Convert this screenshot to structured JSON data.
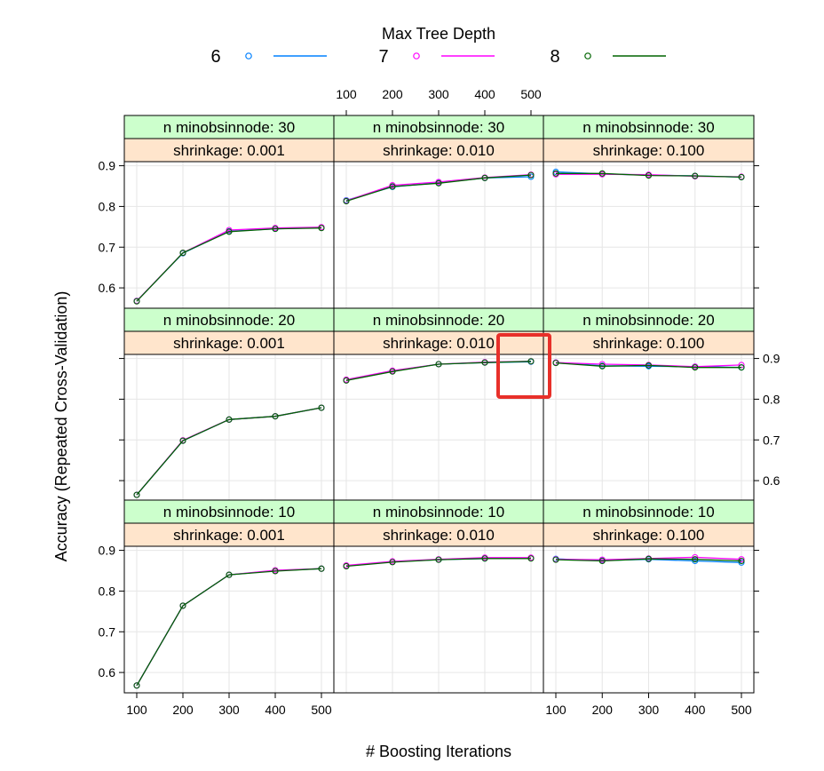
{
  "chart_data": {
    "type": "line",
    "title": "",
    "xlabel": "# Boosting Iterations",
    "ylabel": "Accuracy (Repeated Cross-Validation)",
    "legend": {
      "title": "Max Tree Depth",
      "placement": "top",
      "entries": [
        {
          "label": "6",
          "color": "#0080ff"
        },
        {
          "label": "7",
          "color": "#ff00ff"
        },
        {
          "label": "8",
          "color": "#006400"
        }
      ]
    },
    "x": [
      100,
      200,
      300,
      400,
      500
    ],
    "x_ticks": [
      "100",
      "200",
      "300",
      "400",
      "500"
    ],
    "ylim": [
      0.55,
      0.91
    ],
    "y_ticks": [
      "0.6",
      "0.7",
      "0.8",
      "0.9"
    ],
    "grid": true,
    "strip_colors": {
      "minobsinnode": "#ccffcc",
      "shrinkage": "#ffe5cc"
    },
    "highlight_box_color": "#e8302a",
    "panels": [
      {
        "row": 0,
        "col": 0,
        "minobsinnode_label": "n minobsinnode: 30",
        "shrinkage_label": "shrinkage: 0.001",
        "series": [
          {
            "name": "6",
            "values": [
              0.568,
              0.685,
              0.739,
              0.745,
              0.748
            ]
          },
          {
            "name": "7",
            "values": [
              0.568,
              0.686,
              0.742,
              0.747,
              0.749
            ]
          },
          {
            "name": "8",
            "values": [
              0.567,
              0.686,
              0.738,
              0.745,
              0.747
            ]
          }
        ]
      },
      {
        "row": 0,
        "col": 1,
        "minobsinnode_label": "n minobsinnode: 30",
        "shrinkage_label": "shrinkage: 0.010",
        "series": [
          {
            "name": "6",
            "values": [
              0.815,
              0.848,
              0.858,
              0.87,
              0.873
            ]
          },
          {
            "name": "7",
            "values": [
              0.814,
              0.852,
              0.86,
              0.871,
              0.878
            ]
          },
          {
            "name": "8",
            "values": [
              0.813,
              0.849,
              0.857,
              0.87,
              0.877
            ]
          }
        ]
      },
      {
        "row": 0,
        "col": 2,
        "minobsinnode_label": "n minobsinnode: 30",
        "shrinkage_label": "shrinkage: 0.100",
        "series": [
          {
            "name": "6",
            "values": [
              0.885,
              0.88,
              0.877,
              0.875,
              0.872
            ]
          },
          {
            "name": "7",
            "values": [
              0.879,
              0.879,
              0.878,
              0.874,
              0.873
            ]
          },
          {
            "name": "8",
            "values": [
              0.881,
              0.881,
              0.876,
              0.875,
              0.872
            ]
          }
        ]
      },
      {
        "row": 1,
        "col": 0,
        "minobsinnode_label": "n minobsinnode: 20",
        "shrinkage_label": "shrinkage: 0.001",
        "series": [
          {
            "name": "6",
            "values": [
              0.565,
              0.698,
              0.75,
              0.758,
              0.779
            ]
          },
          {
            "name": "7",
            "values": [
              0.565,
              0.699,
              0.75,
              0.758,
              0.779
            ]
          },
          {
            "name": "8",
            "values": [
              0.565,
              0.698,
              0.75,
              0.758,
              0.779
            ]
          }
        ]
      },
      {
        "row": 1,
        "col": 1,
        "minobsinnode_label": "n minobsinnode: 20",
        "shrinkage_label": "shrinkage: 0.010",
        "series": [
          {
            "name": "6",
            "values": [
              0.847,
              0.869,
              0.886,
              0.89,
              0.892
            ]
          },
          {
            "name": "7",
            "values": [
              0.848,
              0.87,
              0.886,
              0.891,
              0.893
            ]
          },
          {
            "name": "8",
            "values": [
              0.846,
              0.868,
              0.886,
              0.89,
              0.893
            ]
          }
        ]
      },
      {
        "row": 1,
        "col": 2,
        "minobsinnode_label": "n minobsinnode: 20",
        "shrinkage_label": "shrinkage: 0.100",
        "series": [
          {
            "name": "6",
            "values": [
              0.89,
              0.882,
              0.881,
              0.88,
              0.878
            ]
          },
          {
            "name": "7",
            "values": [
              0.89,
              0.886,
              0.884,
              0.88,
              0.884
            ]
          },
          {
            "name": "8",
            "values": [
              0.889,
              0.881,
              0.883,
              0.878,
              0.878
            ]
          }
        ]
      },
      {
        "row": 2,
        "col": 0,
        "minobsinnode_label": "n minobsinnode: 10",
        "shrinkage_label": "shrinkage: 0.001",
        "series": [
          {
            "name": "6",
            "values": [
              0.568,
              0.764,
              0.84,
              0.85,
              0.855
            ]
          },
          {
            "name": "7",
            "values": [
              0.568,
              0.764,
              0.84,
              0.851,
              0.855
            ]
          },
          {
            "name": "8",
            "values": [
              0.568,
              0.764,
              0.84,
              0.849,
              0.855
            ]
          }
        ]
      },
      {
        "row": 2,
        "col": 1,
        "minobsinnode_label": "n minobsinnode: 10",
        "shrinkage_label": "shrinkage: 0.010",
        "series": [
          {
            "name": "6",
            "values": [
              0.862,
              0.872,
              0.877,
              0.88,
              0.881
            ]
          },
          {
            "name": "7",
            "values": [
              0.863,
              0.873,
              0.878,
              0.882,
              0.882
            ]
          },
          {
            "name": "8",
            "values": [
              0.861,
              0.871,
              0.877,
              0.88,
              0.88
            ]
          }
        ]
      },
      {
        "row": 2,
        "col": 2,
        "minobsinnode_label": "n minobsinnode: 10",
        "shrinkage_label": "shrinkage: 0.100",
        "series": [
          {
            "name": "6",
            "values": [
              0.879,
              0.875,
              0.878,
              0.874,
              0.87
            ]
          },
          {
            "name": "7",
            "values": [
              0.878,
              0.877,
              0.88,
              0.883,
              0.878
            ]
          },
          {
            "name": "8",
            "values": [
              0.877,
              0.874,
              0.879,
              0.878,
              0.874
            ]
          }
        ]
      }
    ]
  }
}
